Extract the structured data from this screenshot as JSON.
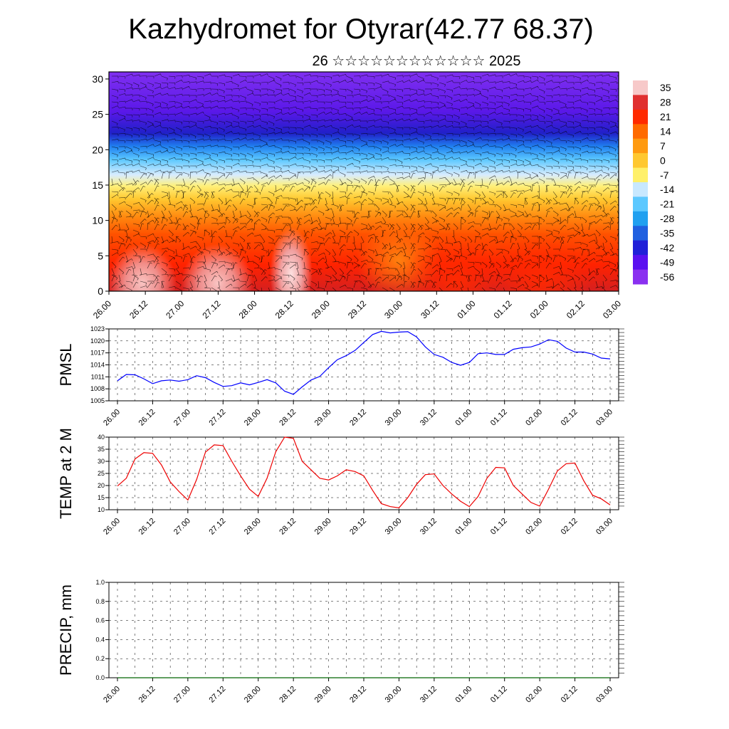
{
  "title": "Kazhydromet for Otyrar(42.77 68.37)",
  "subtitle": "26 ☆☆☆☆☆☆☆☆☆☆☆☆ 2025",
  "time_labels": [
    "26.00",
    "26.12",
    "27.00",
    "27.12",
    "28.00",
    "28.12",
    "29.00",
    "29.12",
    "30.00",
    "30.12",
    "01.00",
    "01.12",
    "02.00",
    "02.12",
    "03.00"
  ],
  "chart_data": [
    {
      "type": "heatmap",
      "title": "",
      "ylim": [
        0,
        31
      ],
      "yticks": [
        0,
        5,
        10,
        15,
        20,
        25,
        30
      ],
      "colorbar_labels": [
        "35",
        "28",
        "21",
        "14",
        "7",
        "0",
        "-7",
        "-14",
        "-21",
        "-28",
        "-35",
        "-42",
        "-49",
        "-56"
      ],
      "colorbar_colors": [
        "#f7c9c9",
        "#e03030",
        "#ff2a00",
        "#ff6a00",
        "#ff9a10",
        "#ffc830",
        "#fff06a",
        "#c8e8ff",
        "#5cc8ff",
        "#20a0f0",
        "#2060e0",
        "#2020d8",
        "#5a10f0",
        "#8a30f0"
      ],
      "bands": [
        {
          "from": 0,
          "to": 10,
          "value": "warm (14 to 35)"
        },
        {
          "from": 13,
          "to": 17,
          "value": "-7 to 0"
        },
        {
          "from": 17,
          "to": 21,
          "value": "-28 to -14"
        },
        {
          "from": 21,
          "to": 31,
          "value": "-56 to -42"
        }
      ]
    },
    {
      "type": "line",
      "ylabel": "PMSL",
      "ylim": [
        1005,
        1023
      ],
      "yticks": [
        1005,
        1008,
        1011,
        1014,
        1017,
        1020,
        1023
      ],
      "color": "#0000ff",
      "x": [
        0,
        0.25,
        0.5,
        0.75,
        1,
        1.25,
        1.5,
        1.75,
        2,
        2.25,
        2.5,
        2.75,
        3,
        3.25,
        3.5,
        3.75,
        4,
        4.25,
        4.5,
        4.75,
        5,
        5.25,
        5.5,
        5.75,
        6,
        6.25,
        6.5,
        6.75,
        7,
        7.25,
        7.5,
        7.75,
        8,
        8.25,
        8.5,
        8.75,
        9,
        9.25,
        9.5,
        9.75,
        10,
        10.25,
        10.5,
        10.75,
        11,
        11.25,
        11.5,
        11.75,
        12,
        12.25,
        12.5,
        12.75,
        13,
        13.25,
        13.5,
        13.75,
        14
      ],
      "values": [
        1010.0,
        1011.6,
        1011.5,
        1010.5,
        1009.3,
        1010.0,
        1010.2,
        1009.9,
        1010.3,
        1011.3,
        1010.8,
        1009.6,
        1008.6,
        1008.8,
        1009.5,
        1009.0,
        1009.6,
        1010.3,
        1009.5,
        1007.4,
        1006.6,
        1008.5,
        1010.2,
        1011.1,
        1013.3,
        1015.3,
        1016.3,
        1017.6,
        1019.6,
        1021.6,
        1022.4,
        1022.0,
        1022.2,
        1022.3,
        1021.0,
        1018.5,
        1016.6,
        1015.9,
        1014.6,
        1013.9,
        1014.6,
        1016.8,
        1017.0,
        1016.6,
        1016.6,
        1017.9,
        1018.3,
        1018.5,
        1019.2,
        1020.3,
        1019.9,
        1018.2,
        1017.2,
        1017.2,
        1016.7,
        1015.7,
        1015.5
      ]
    },
    {
      "type": "line",
      "ylabel": "TEMP at 2 M",
      "ylim": [
        10,
        40
      ],
      "yticks": [
        10,
        15,
        20,
        25,
        30,
        35,
        40
      ],
      "color": "#ee0000",
      "x": [
        0,
        0.25,
        0.5,
        0.75,
        1,
        1.25,
        1.5,
        1.75,
        2,
        2.25,
        2.5,
        2.75,
        3,
        3.25,
        3.5,
        3.75,
        4,
        4.25,
        4.5,
        4.75,
        5,
        5.25,
        5.5,
        5.75,
        6,
        6.25,
        6.5,
        6.75,
        7,
        7.25,
        7.5,
        7.75,
        8,
        8.25,
        8.5,
        8.75,
        9,
        9.25,
        9.5,
        9.75,
        10,
        10.25,
        10.5,
        10.75,
        11,
        11.25,
        11.5,
        11.75,
        12,
        12.25,
        12.5,
        12.75,
        13,
        13.25,
        13.5,
        13.75,
        14
      ],
      "values": [
        19.8,
        23.0,
        31.0,
        33.6,
        33.3,
        28.5,
        21.5,
        17.5,
        14.0,
        22.5,
        33.8,
        36.8,
        36.5,
        30.0,
        24.0,
        18.5,
        15.5,
        23.0,
        34.0,
        40.0,
        39.5,
        30.0,
        26.5,
        23.0,
        22.3,
        24.0,
        26.5,
        25.8,
        24.0,
        18.0,
        12.5,
        11.3,
        10.8,
        15.0,
        20.5,
        24.5,
        24.8,
        20.0,
        16.5,
        13.5,
        11.3,
        15.5,
        23.0,
        27.5,
        27.3,
        20.0,
        16.5,
        13.0,
        11.5,
        18.5,
        26.0,
        29.0,
        29.3,
        22.0,
        16.0,
        14.5,
        12.0
      ]
    },
    {
      "type": "line",
      "ylabel": "PRECIP, mm",
      "ylim": [
        0,
        1.0
      ],
      "yticks": [
        "0.0",
        "0.2",
        "0.4",
        "0.6",
        "0.8",
        "1.0"
      ],
      "color": "#006400",
      "x": [
        0,
        14
      ],
      "values": [
        0.0,
        0.0
      ]
    }
  ]
}
